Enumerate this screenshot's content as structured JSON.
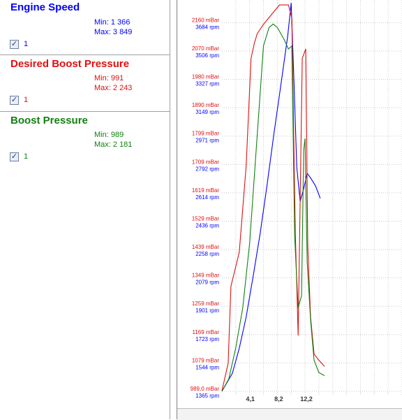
{
  "legend": [
    {
      "title": "Engine Speed",
      "color": "#0000ff",
      "min_label": "Min: 1 366",
      "max_label": "Max: 3 849",
      "checked": true,
      "checkbox_label": "1"
    },
    {
      "title": "Desired Boost Pressure",
      "color": "#e01010",
      "min_label": "Min: 991",
      "max_label": "Max: 2 243",
      "checked": true,
      "checkbox_label": "1"
    },
    {
      "title": "Boost Pressure",
      "color": "#128012",
      "min_label": "Min: 989",
      "max_label": "Max: 2 181",
      "checked": true,
      "checkbox_label": "1"
    }
  ],
  "chart_data": {
    "type": "line",
    "title": "",
    "xlabel": "",
    "ylabel": "",
    "grid": true,
    "x_ticks": [
      "4,1",
      "8,2",
      "12,2"
    ],
    "x_tick_values": [
      4.1,
      8.2,
      12.2
    ],
    "xlim": [
      0,
      26
    ],
    "y_axis_left_pressure": {
      "labels": [
        "989,0 mBar",
        "1079 mBar",
        "1169 mBar",
        "1259 mBar",
        "1349 mBar",
        "1439 mBar",
        "1529 mBar",
        "1619 mBar",
        "1709 mBar",
        "1799 mBar",
        "1890 mBar",
        "1980 mBar",
        "2070 mBar",
        "2160 mBar"
      ],
      "ylim": [
        989,
        2250
      ],
      "color": "#e01010"
    },
    "y_axis_left_rpm": {
      "labels": [
        "1365 rpm",
        "1544 rpm",
        "1723 rpm",
        "1901 rpm",
        "2079 rpm",
        "2258 rpm",
        "2436 rpm",
        "2614 rpm",
        "2792 rpm",
        "2971 rpm",
        "3149 rpm",
        "3327 rpm",
        "3506 rpm",
        "3684 rpm"
      ],
      "ylim": [
        1365,
        3850
      ],
      "color": "#0000ff"
    },
    "series": [
      {
        "name": "Engine Speed",
        "axis": "rpm",
        "color": "#0000ff",
        "points": [
          [
            0,
            1366
          ],
          [
            1.5,
            1480
          ],
          [
            2.5,
            1640
          ],
          [
            3.5,
            1840
          ],
          [
            4.5,
            2100
          ],
          [
            5.5,
            2370
          ],
          [
            6.5,
            2680
          ],
          [
            7.5,
            3010
          ],
          [
            8.5,
            3320
          ],
          [
            9.5,
            3640
          ],
          [
            10.0,
            3849
          ],
          [
            10.4,
            3350
          ],
          [
            10.8,
            2800
          ],
          [
            11.3,
            2580
          ],
          [
            11.8,
            2660
          ],
          [
            12.3,
            2760
          ],
          [
            12.8,
            2730
          ],
          [
            13.5,
            2680
          ],
          [
            14.2,
            2600
          ]
        ]
      },
      {
        "name": "Desired Boost Pressure",
        "axis": "pressure",
        "color": "#e01010",
        "points": [
          [
            0,
            991
          ],
          [
            0.9,
            1080
          ],
          [
            1.3,
            1330
          ],
          [
            2.5,
            1440
          ],
          [
            3.5,
            1720
          ],
          [
            4.2,
            2070
          ],
          [
            4.7,
            2120
          ],
          [
            5.1,
            2150
          ],
          [
            6.0,
            2180
          ],
          [
            8.3,
            2243
          ],
          [
            9.6,
            2243
          ],
          [
            10.1,
            2200
          ],
          [
            10.4,
            1770
          ],
          [
            10.6,
            1500
          ],
          [
            11.0,
            1170
          ],
          [
            11.6,
            2070
          ],
          [
            12.1,
            2100
          ],
          [
            12.4,
            1460
          ],
          [
            12.8,
            1230
          ],
          [
            13.3,
            1110
          ],
          [
            14.0,
            1090
          ],
          [
            14.8,
            1070
          ]
        ]
      },
      {
        "name": "Boost Pressure",
        "axis": "pressure",
        "color": "#128012",
        "points": [
          [
            0,
            989
          ],
          [
            1.0,
            1030
          ],
          [
            2.0,
            1130
          ],
          [
            3.0,
            1260
          ],
          [
            4.0,
            1470
          ],
          [
            5.0,
            1790
          ],
          [
            6.0,
            2110
          ],
          [
            6.8,
            2170
          ],
          [
            7.4,
            2181
          ],
          [
            8.0,
            2170
          ],
          [
            9.0,
            2130
          ],
          [
            9.6,
            2100
          ],
          [
            10.1,
            2110
          ],
          [
            10.5,
            1490
          ],
          [
            11.0,
            1260
          ],
          [
            11.5,
            1300
          ],
          [
            11.8,
            1770
          ],
          [
            12.0,
            1810
          ],
          [
            12.3,
            1410
          ],
          [
            12.8,
            1220
          ],
          [
            13.3,
            1090
          ],
          [
            14.0,
            1050
          ],
          [
            14.8,
            1040
          ]
        ]
      }
    ]
  }
}
